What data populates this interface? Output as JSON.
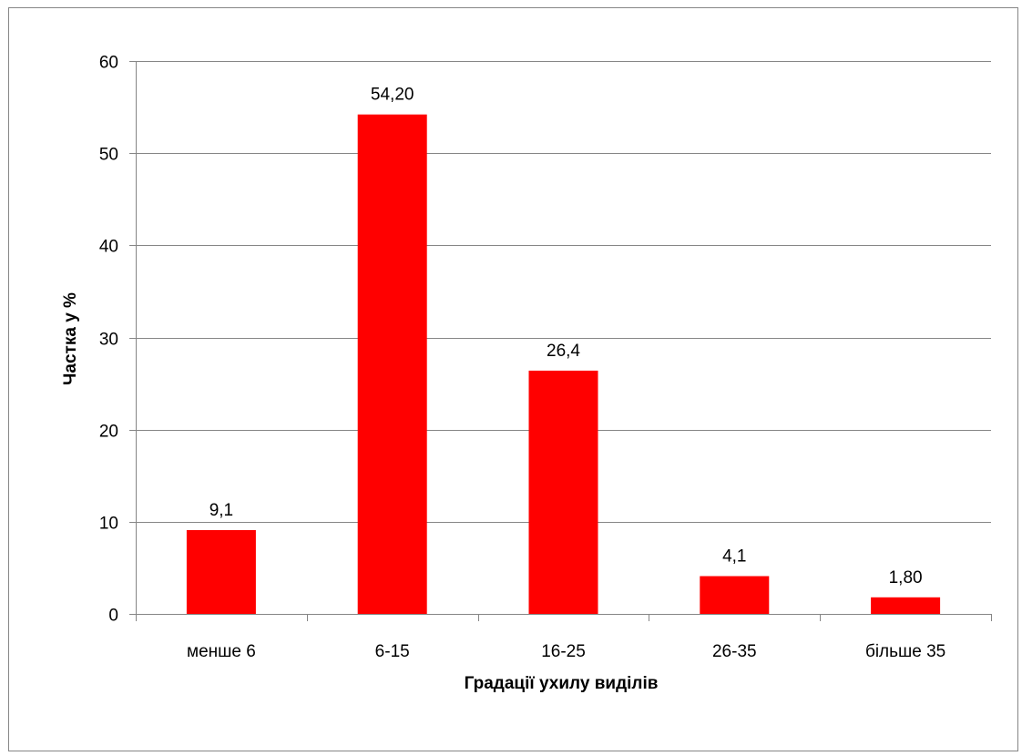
{
  "chart_data": {
    "type": "bar",
    "categories": [
      "менше 6",
      "6-15",
      "16-25",
      "26-35",
      "більше 35"
    ],
    "values": [
      9.1,
      54.2,
      26.4,
      4.1,
      1.8
    ],
    "data_labels": [
      "9,1",
      "54,20",
      "26,4",
      "4,1",
      "1,80"
    ],
    "title": "",
    "xlabel": "Градації ухилу виділів",
    "ylabel": "Частка у %",
    "ylim": [
      0,
      60
    ],
    "yticks": [
      0,
      10,
      20,
      30,
      40,
      50,
      60
    ],
    "ytick_labels": [
      "0",
      "10",
      "20",
      "30",
      "40",
      "50",
      "60"
    ],
    "grid": true,
    "legend": "none",
    "colors": {
      "bar": "#ff0000",
      "grid": "#868686",
      "axis": "#868686",
      "frame": "#868686"
    }
  }
}
